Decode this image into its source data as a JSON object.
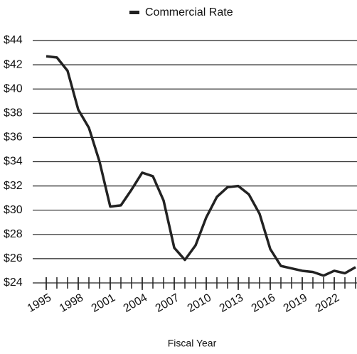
{
  "chart_data": {
    "type": "line",
    "legend": "Commercial Rate",
    "x_label": "Fiscal Year",
    "x": [
      1995,
      1996,
      1997,
      1998,
      1999,
      2000,
      2001,
      2002,
      2003,
      2004,
      2005,
      2006,
      2007,
      2008,
      2009,
      2010,
      2011,
      2012,
      2013,
      2014,
      2015,
      2016,
      2017,
      2018,
      2019,
      2020,
      2021,
      2022,
      2023,
      2024
    ],
    "series": [
      {
        "name": "Commercial Rate",
        "color": "#222222",
        "values": [
          42.7,
          42.6,
          41.5,
          38.3,
          36.8,
          34,
          30.3,
          30.4,
          31.7,
          33.1,
          32.8,
          30.8,
          26.9,
          25.9,
          27.1,
          29.4,
          31.1,
          31.9,
          32,
          31.3,
          29.7,
          26.8,
          25.4,
          25.2,
          25.0,
          24.9,
          24.6,
          25,
          24.8,
          25.3
        ]
      }
    ],
    "xlim": [
      1995,
      2024
    ],
    "xticks": [
      1995,
      1998,
      2001,
      2004,
      2007,
      2010,
      2013,
      2016,
      2019,
      2022
    ],
    "ylim": [
      24,
      44
    ],
    "yticks": [
      {
        "value": 24,
        "label": "$24"
      },
      {
        "value": 26,
        "label": "$26"
      },
      {
        "value": 28,
        "label": "$28"
      },
      {
        "value": 30,
        "label": "$30"
      },
      {
        "value": 32,
        "label": "$32"
      },
      {
        "value": 34,
        "label": "$34"
      },
      {
        "value": 36,
        "label": "$36"
      },
      {
        "value": 38,
        "label": "$38"
      },
      {
        "value": 40,
        "label": "$40"
      },
      {
        "value": 42,
        "label": "$42"
      },
      {
        "value": 44,
        "label": "$44"
      }
    ],
    "grid": true
  }
}
